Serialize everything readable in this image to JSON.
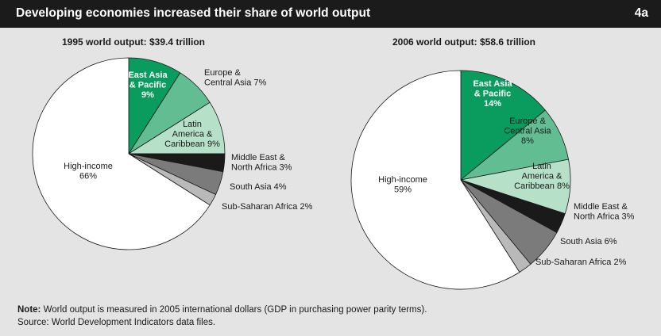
{
  "header": {
    "title": "Developing economies increased their share of world output",
    "badge": "4a"
  },
  "notes": {
    "note_label": "Note:",
    "note_text": " World output is measured in 2005 international dollars (GDP in purchasing power parity terms).",
    "source": "Source: World Development Indicators data files."
  },
  "colors": {
    "east_asia": "#0a9c5e",
    "europe": "#63bd92",
    "latin_america": "#b6e0c8",
    "middle_east": "#1a1a1a",
    "south_asia": "#7b7b7b",
    "sub_saharan": "#b9b9b9",
    "high_income": "#ffffff"
  },
  "chart_data": [
    {
      "type": "pie",
      "title": "1995 world output: $39.4 trillion",
      "slices": [
        {
          "label_lines": [
            "East Asia",
            "& Pacific",
            "9%"
          ],
          "value": 9,
          "color_key": "east_asia",
          "inside": true
        },
        {
          "label_lines": [
            "Europe &",
            "Central Asia 7%"
          ],
          "value": 7,
          "color_key": "europe",
          "inside": false
        },
        {
          "label_lines": [
            "Latin",
            "America &",
            "Caribbean 9%"
          ],
          "value": 9,
          "color_key": "latin_america",
          "inside": true
        },
        {
          "label_lines": [
            "Middle East  &",
            "North Africa 3%"
          ],
          "value": 3,
          "color_key": "middle_east",
          "inside": false
        },
        {
          "label_lines": [
            "South Asia 4%"
          ],
          "value": 4,
          "color_key": "south_asia",
          "inside": false
        },
        {
          "label_lines": [
            "Sub-Saharan Africa 2%"
          ],
          "value": 2,
          "color_key": "sub_saharan",
          "inside": false
        },
        {
          "label_lines": [
            "High-income",
            "66%"
          ],
          "value": 66,
          "color_key": "high_income",
          "inside": true
        }
      ]
    },
    {
      "type": "pie",
      "title": "2006 world output: $58.6 trillion",
      "slices": [
        {
          "label_lines": [
            "East Asia",
            "& Pacific",
            "14%"
          ],
          "value": 14,
          "color_key": "east_asia",
          "inside": true
        },
        {
          "label_lines": [
            "Europe &",
            "Central Asia",
            "8%"
          ],
          "value": 8,
          "color_key": "europe",
          "inside": true
        },
        {
          "label_lines": [
            "Latin",
            "America &",
            "Caribbean 8%"
          ],
          "value": 8,
          "color_key": "latin_america",
          "inside": true
        },
        {
          "label_lines": [
            "Middle East  &",
            "North Africa 3%"
          ],
          "value": 3,
          "color_key": "middle_east",
          "inside": false
        },
        {
          "label_lines": [
            "South Asia 6%"
          ],
          "value": 6,
          "color_key": "south_asia",
          "inside": false
        },
        {
          "label_lines": [
            "Sub-Saharan Africa 2%"
          ],
          "value": 2,
          "color_key": "sub_saharan",
          "inside": false
        },
        {
          "label_lines": [
            "High-income",
            "59%"
          ],
          "value": 59,
          "color_key": "high_income",
          "inside": true
        }
      ]
    }
  ]
}
